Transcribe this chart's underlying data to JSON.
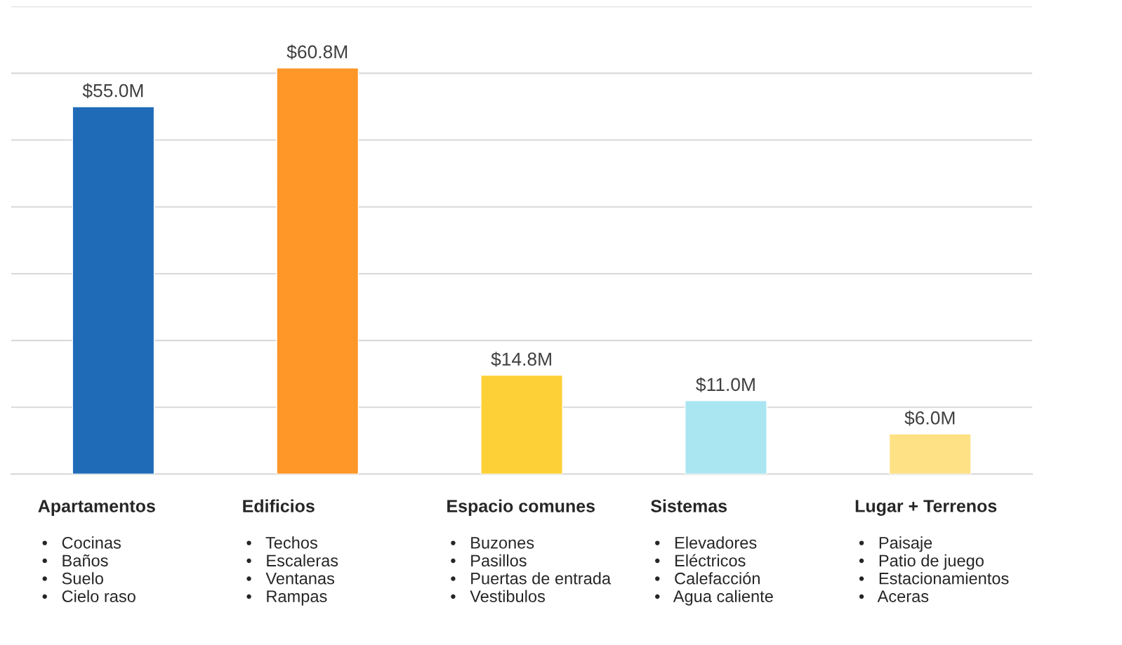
{
  "chart_data": {
    "type": "bar",
    "categories": [
      "Apartamentos",
      "Edificios",
      "Espacio comunes",
      "Sistemas",
      "Lugar + Terrenos"
    ],
    "values": [
      55.0,
      60.8,
      14.8,
      11.0,
      6.0
    ],
    "value_labels": [
      "$55.0M",
      "$60.8M",
      "$14.8M",
      "$11.0M",
      "$6.0M"
    ],
    "colors": [
      "#1f6bb8",
      "#ff9628",
      "#fdd037",
      "#aae6f2",
      "#fde184"
    ],
    "ylim": [
      0,
      70
    ],
    "yticks": [
      {
        "value": 0,
        "label": null
      },
      {
        "value": 10,
        "label": null
      },
      {
        "value": 20,
        "label": null
      },
      {
        "value": 30,
        "label": null
      },
      {
        "value": 40,
        "label": null
      },
      {
        "value": 50,
        "label": null
      },
      {
        "value": 60,
        "label": null
      },
      {
        "value": 70,
        "label": null
      }
    ],
    "grid": "y",
    "tick_labels": "x",
    "annotations": [
      "•   Cocinas\n•   Baños\n•   Suelo\n•   Cielo raso",
      "•   Techos\n•   Escaleras\n•   Ventanas\n•   Rampas",
      "•   Buzones\n•   Pasillos\n•   Puertas de entrada\n•   Vestibulos",
      "•   Elevadores\n•   Eléctricos\n•   Calefacción\n•   Agua caliente",
      "•   Paisaje\n•   Patio de juego\n•   Estacionamientos\n•   Aceras"
    ]
  }
}
